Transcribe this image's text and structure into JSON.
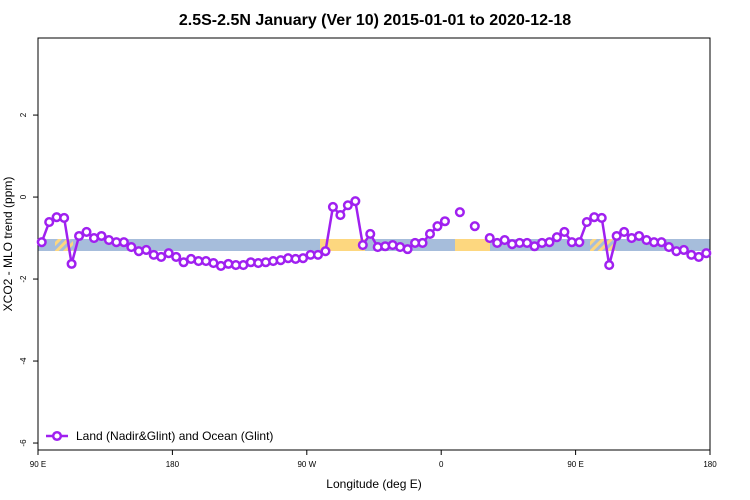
{
  "chart_data": {
    "type": "line",
    "title": "2.5S-2.5N January (Ver 10)   2015-01-01 to 2020-12-18",
    "xlabel": "Longitude (deg E)",
    "ylabel": "XCO2 - MLO trend (ppm)",
    "xlim": [
      90,
      540
    ],
    "ylim": [
      -6.17,
      3.88
    ],
    "xticks": [
      {
        "value": 90,
        "label": "90 E"
      },
      180,
      {
        "value": 270,
        "label": "90 W"
      },
      {
        "value": 360,
        "label": "0"
      },
      {
        "value": 450,
        "label": "90 E"
      },
      {
        "value": 540,
        "label": "180"
      }
    ],
    "yticks": [
      -6,
      -4,
      -2,
      0,
      2
    ],
    "legend": "lower left",
    "x": [
      92.5,
      97.5,
      102.5,
      107.5,
      112.5,
      117.5,
      122.5,
      127.5,
      132.5,
      137.5,
      142.5,
      147.5,
      152.5,
      157.5,
      162.5,
      167.5,
      172.5,
      177.5,
      182.5,
      187.5,
      192.5,
      197.5,
      202.5,
      207.5,
      212.5,
      217.5,
      222.5,
      227.5,
      232.5,
      237.5,
      242.5,
      247.5,
      252.5,
      257.5,
      262.5,
      267.5,
      272.5,
      277.5,
      282.5,
      287.5,
      292.5,
      297.5,
      302.5,
      307.5,
      312.5,
      317.5,
      322.5,
      327.5,
      332.5,
      337.5,
      342.5,
      347.5,
      352.5,
      357.5,
      362.5,
      367.5,
      372.5,
      377.5,
      382.5,
      387.5,
      392.5,
      397.5,
      402.5,
      407.5,
      412.5,
      417.5,
      422.5,
      427.5,
      432.5,
      437.5,
      442.5,
      447.5,
      452.5,
      457.5,
      462.5,
      467.5,
      472.5,
      477.5,
      482.5,
      487.5,
      492.5,
      497.5,
      502.5,
      507.5,
      512.5,
      517.5,
      522.5,
      527.5,
      532.5,
      537.5
    ],
    "series": [
      {
        "name": "Land (Nadir&Glint) and Ocean (Glint)",
        "color": "#a020f0",
        "values": [
          -1.1,
          -0.61,
          -0.49,
          -0.51,
          -1.63,
          -0.95,
          -0.85,
          -1.0,
          -0.95,
          -1.05,
          -1.1,
          -1.1,
          -1.22,
          -1.32,
          -1.29,
          -1.41,
          -1.46,
          -1.37,
          -1.46,
          -1.59,
          -1.51,
          -1.56,
          -1.56,
          -1.61,
          -1.68,
          -1.63,
          -1.66,
          -1.66,
          -1.59,
          -1.61,
          -1.59,
          -1.56,
          -1.54,
          -1.49,
          -1.51,
          -1.49,
          -1.41,
          -1.41,
          -1.32,
          -0.24,
          -0.44,
          -0.2,
          -0.1,
          -1.17,
          -0.9,
          -1.22,
          -1.2,
          -1.17,
          -1.22,
          -1.27,
          -1.12,
          -1.12,
          -0.9,
          -0.71,
          -0.59,
          null,
          -0.37,
          null,
          -0.71,
          null,
          -1.0,
          -1.12,
          -1.05,
          -1.15,
          -1.12,
          -1.12,
          -1.2,
          -1.12,
          -1.1,
          -0.98,
          -0.85,
          -1.1,
          -1.1,
          -0.61,
          -0.49,
          -0.51,
          -1.66,
          -0.95,
          -0.85,
          -1.0,
          -0.95,
          -1.05,
          -1.1,
          -1.1,
          -1.22,
          -1.32,
          -1.29,
          -1.41,
          -1.46,
          -1.37
        ]
      }
    ]
  }
}
